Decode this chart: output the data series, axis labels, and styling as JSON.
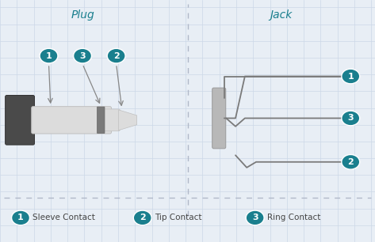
{
  "bg_color": "#e8eef5",
  "grid_color": "#ccd8e8",
  "title_plug": "Plug",
  "title_jack": "Jack",
  "teal_color": "#1a7f8e",
  "plug_body_color": "#dcdcdc",
  "plug_sleeve_color": "#4a4a4a",
  "plug_ring_color": "#7a7a7a",
  "jack_body_color": "#b0b0b0",
  "jack_line_color": "#7a7a7a",
  "legend": [
    {
      "num": "1",
      "label": "Sleeve Contact"
    },
    {
      "num": "2",
      "label": "Tip Contact"
    },
    {
      "num": "3",
      "label": "Ring Contact"
    }
  ],
  "dashed_line_color": "#b0b8c8",
  "font_name": "DejaVu Sans"
}
